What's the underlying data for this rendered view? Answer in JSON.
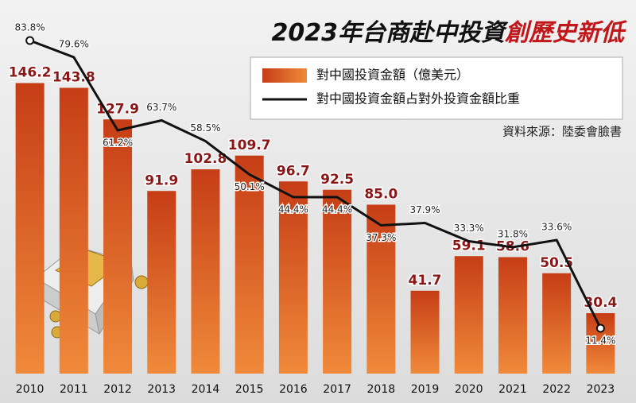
{
  "chart_data": {
    "type": "bar-line",
    "title": [
      "2023年台商赴中投資",
      "創歷史新低"
    ],
    "source": "資料來源：陸委會臉書",
    "categories": [
      "2010",
      "2011",
      "2012",
      "2013",
      "2014",
      "2015",
      "2016",
      "2017",
      "2018",
      "2019",
      "2020",
      "2021",
      "2022",
      "2023"
    ],
    "series": [
      {
        "name": "對中國投資金額（億美元）",
        "type": "bar",
        "color": "#d9541e",
        "values": [
          146.2,
          143.8,
          127.9,
          91.9,
          102.8,
          109.7,
          96.7,
          92.5,
          85.0,
          41.7,
          59.1,
          58.6,
          50.5,
          30.4
        ],
        "value_labels": [
          "146.2",
          "143.8",
          "127.9",
          "91.9",
          "102.8",
          "109.7",
          "96.7",
          "92.5",
          "85.0",
          "41.7",
          "59.1",
          "58.6",
          "50.5",
          "30.4"
        ]
      },
      {
        "name": "對中國投資金額占對外投資金額比重",
        "type": "line",
        "color": "#111111",
        "axis": "y2",
        "values": [
          83.8,
          79.6,
          61.2,
          63.7,
          58.5,
          50.1,
          44.4,
          44.4,
          37.3,
          37.9,
          33.3,
          31.8,
          33.6,
          11.4
        ],
        "value_labels": [
          "83.8%",
          "79.6%",
          "61.2%",
          "63.7%",
          "58.5%",
          "50.1%",
          "44.4%",
          "44.4%",
          "37.3%",
          "37.9%",
          "33.3%",
          "31.8%",
          "33.6%",
          "11.4%"
        ]
      }
    ],
    "ylim": [
      0,
      160
    ],
    "y2lim": [
      0,
      90
    ]
  }
}
